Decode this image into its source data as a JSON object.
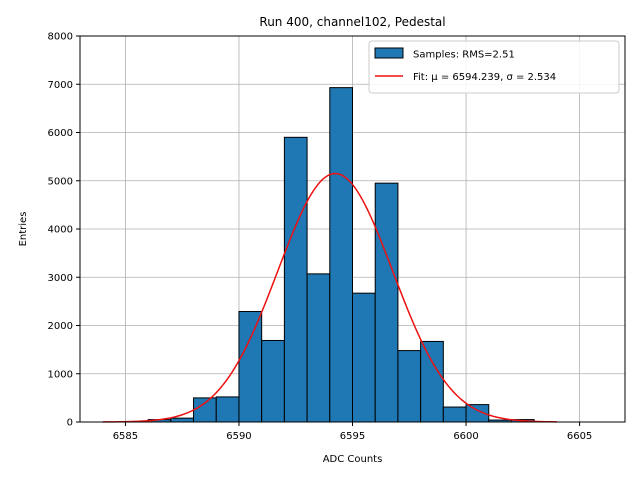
{
  "chart_data": {
    "type": "bar",
    "title": "Run 400, channel102, Pedestal",
    "xlabel": "ADC Counts",
    "ylabel": "Entries",
    "xlim": [
      6583.0,
      6607.0
    ],
    "ylim": [
      0,
      8000
    ],
    "xticks": [
      6585,
      6590,
      6595,
      6600,
      6605
    ],
    "yticks": [
      0,
      1000,
      2000,
      3000,
      4000,
      5000,
      6000,
      7000,
      8000
    ],
    "grid": true,
    "legend_position": "top-right",
    "histogram": {
      "name": "Samples: RMS=2.51",
      "color": "#1f77b4",
      "edge_color": "#000000",
      "bin_edges": [
        6584,
        6585,
        6586,
        6587,
        6588,
        6589,
        6590,
        6591,
        6592,
        6593,
        6594,
        6595,
        6596,
        6597,
        6598,
        6599,
        6600,
        6601,
        6602,
        6603,
        6604,
        6605,
        6606
      ],
      "counts": [
        0,
        0,
        50,
        80,
        500,
        520,
        2290,
        1690,
        5900,
        3070,
        6930,
        2670,
        4950,
        1480,
        1670,
        310,
        360,
        40,
        50,
        0,
        0,
        0
      ]
    },
    "fit": {
      "name": "Fit: μ = 6594.239, σ = 2.534",
      "color": "#ee1111",
      "mu": 6594.239,
      "sigma": 2.534,
      "amplitude": 5150,
      "x_range": [
        6584,
        6604
      ]
    }
  }
}
